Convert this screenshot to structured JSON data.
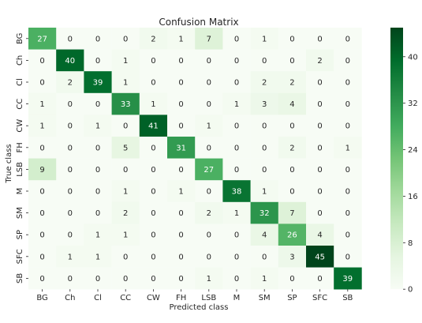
{
  "chart_data": {
    "type": "heatmap",
    "title": "Confusion Matrix",
    "xlabel": "Predicted class",
    "ylabel": "True class",
    "x_categories": [
      "BG",
      "Ch",
      "Cl",
      "CC",
      "CW",
      "FH",
      "LSB",
      "M",
      "SM",
      "SP",
      "SFC",
      "SB"
    ],
    "y_categories": [
      "BG",
      "Ch",
      "Cl",
      "CC",
      "CW",
      "FH",
      "LSB",
      "M",
      "SM",
      "SP",
      "SFC",
      "SB"
    ],
    "values": [
      [
        27,
        0,
        0,
        0,
        2,
        1,
        7,
        0,
        1,
        0,
        0,
        0
      ],
      [
        0,
        40,
        0,
        1,
        0,
        0,
        0,
        0,
        0,
        0,
        2,
        0
      ],
      [
        0,
        2,
        39,
        1,
        0,
        0,
        0,
        0,
        2,
        2,
        0,
        0
      ],
      [
        1,
        0,
        0,
        33,
        1,
        0,
        0,
        1,
        3,
        4,
        0,
        0
      ],
      [
        1,
        0,
        1,
        0,
        41,
        0,
        1,
        0,
        0,
        0,
        0,
        0
      ],
      [
        0,
        0,
        0,
        5,
        0,
        31,
        0,
        0,
        0,
        2,
        0,
        1
      ],
      [
        9,
        0,
        0,
        0,
        0,
        0,
        27,
        0,
        0,
        0,
        0,
        0
      ],
      [
        0,
        0,
        0,
        1,
        0,
        1,
        0,
        38,
        1,
        0,
        0,
        0
      ],
      [
        0,
        0,
        0,
        2,
        0,
        0,
        2,
        1,
        32,
        7,
        0,
        0
      ],
      [
        0,
        0,
        1,
        1,
        0,
        0,
        0,
        0,
        4,
        26,
        4,
        0
      ],
      [
        0,
        1,
        1,
        0,
        0,
        0,
        0,
        0,
        0,
        3,
        45,
        0
      ],
      [
        0,
        0,
        0,
        0,
        0,
        0,
        1,
        0,
        1,
        0,
        0,
        39
      ]
    ],
    "colorbar": {
      "ticks": [
        0,
        8,
        16,
        24,
        32,
        40
      ],
      "range": [
        0,
        45
      ],
      "colormap": "Greens",
      "low_color": "#f7fcf5",
      "high_color": "#00441b"
    },
    "grid": false,
    "legend": "colorbar-right"
  }
}
